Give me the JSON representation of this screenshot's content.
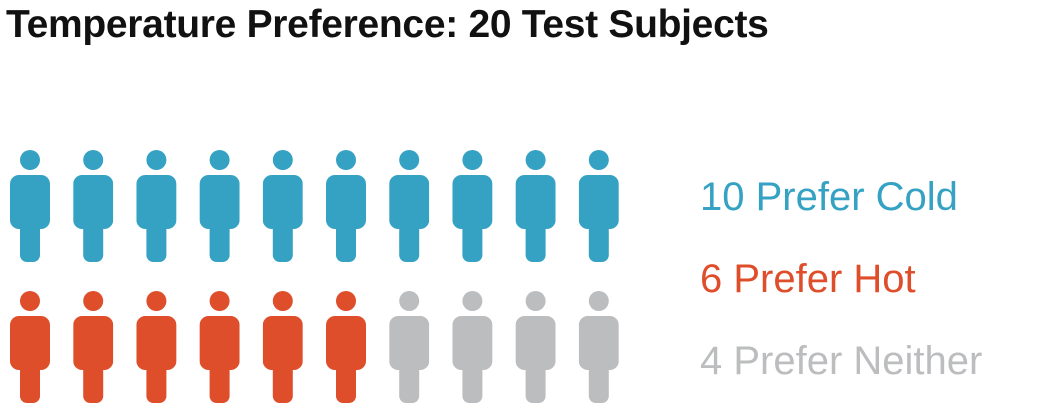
{
  "chart_data": {
    "type": "pictogram",
    "title": "Temperature Preference: 20 Test Subjects",
    "total": 20,
    "icon": "person-icon",
    "columns": 10,
    "series": [
      {
        "name": "10 Prefer Cold",
        "value": 10,
        "color": "#35a2c4"
      },
      {
        "name": "6 Prefer Hot",
        "value": 6,
        "color": "#df4e2a"
      },
      {
        "name": "4 Prefer Neither",
        "value": 4,
        "color": "#bcbdbf"
      }
    ],
    "legend_position": "right"
  }
}
